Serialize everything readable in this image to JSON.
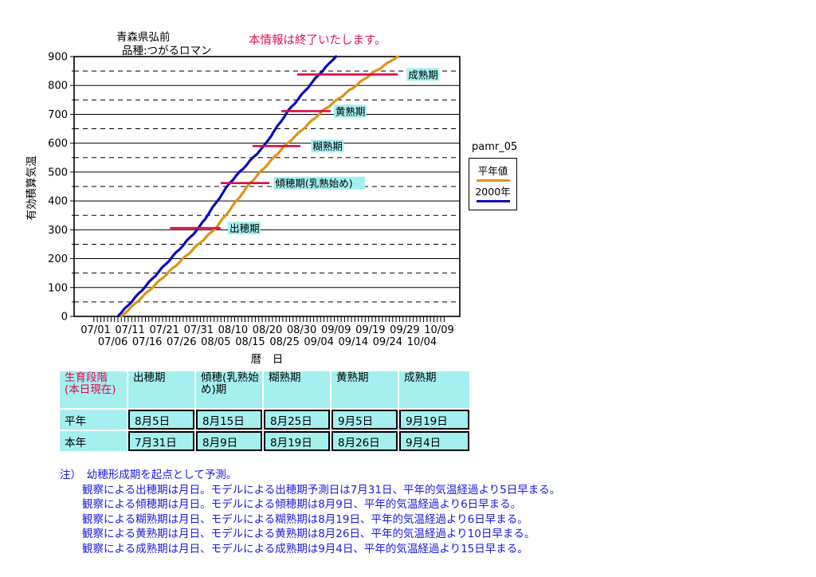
{
  "page": {
    "location": "青森県弘前",
    "variety": "品種:つがるロマン",
    "notice": "本情報は終了いたします。"
  },
  "legend": {
    "title": "pamr_05",
    "items": [
      {
        "label": "平年値"
      },
      {
        "label": "2000年"
      }
    ]
  },
  "chart_data": {
    "type": "line",
    "x_axis": {
      "title": "暦　日",
      "day_origin": "07/01",
      "tick_labels_row1": [
        "07/01",
        "07/11",
        "07/21",
        "07/31",
        "08/10",
        "08/20",
        "08/30",
        "09/09",
        "09/19",
        "09/29",
        "10/09"
      ],
      "tick_labels_row2": [
        "07/06",
        "07/16",
        "07/26",
        "08/05",
        "08/15",
        "08/25",
        "09/04",
        "09/14",
        "09/24",
        "10/04"
      ]
    },
    "y_axis": {
      "title": "有効積算気温",
      "min": 0,
      "max": 900,
      "major_step": 100,
      "minor_step": 50
    },
    "series": [
      {
        "name": "2000年",
        "color": "#0B0BB9",
        "points": [
          [
            6.5,
            0
          ],
          [
            30,
            306
          ],
          [
            39,
            462
          ],
          [
            49,
            590
          ],
          [
            56,
            711
          ],
          [
            65,
            838
          ],
          [
            70,
            900
          ]
        ]
      },
      {
        "name": "平年値",
        "color": "#DE9414",
        "points": [
          [
            7.5,
            0
          ],
          [
            35,
            306
          ],
          [
            45,
            462
          ],
          [
            55,
            590
          ],
          [
            66,
            711
          ],
          [
            80,
            838
          ],
          [
            88,
            900
          ]
        ]
      }
    ],
    "stage_lines": [
      {
        "label": "出穂期",
        "value": 306,
        "from_day": 21.6,
        "to_day": 36.4,
        "label_day": 39.0
      },
      {
        "label": "傾穂期(乳熟始め)",
        "value": 462,
        "from_day": 36.4,
        "to_day": 50.6,
        "label_day": 52.3
      },
      {
        "label": "糊熟期",
        "value": 590,
        "from_day": 45.7,
        "to_day": 59.6,
        "label_day": 63.2
      },
      {
        "label": "黄熟期",
        "value": 711,
        "from_day": 54.1,
        "to_day": 68.4,
        "label_day": 69.8
      },
      {
        "label": "成熟期",
        "value": 838,
        "from_day": 58.7,
        "to_day": 88.0,
        "label_day": 91.0
      }
    ]
  },
  "table": {
    "stage_col_title_line1": "生育段階",
    "stage_col_title_line2": "(本日現在)",
    "columns": [
      "出穂期",
      "傾穂(乳熟始め)期",
      "糊熟期",
      "黄熟期",
      "成熟期"
    ],
    "rows": [
      {
        "label": "平年",
        "values": [
          "8月5日",
          "8月15日",
          "8月25日",
          "9月5日",
          "9月19日"
        ]
      },
      {
        "label": "本年",
        "values": [
          "7月31日",
          "8月9日",
          "8月19日",
          "8月26日",
          "9月4日"
        ]
      }
    ]
  },
  "notes": {
    "heading": "注）　幼穂形成期を起点として予測。",
    "lines": [
      "観察による出穂期は月日。モデルによる出穂期予測日は7月31日、平年的気温経過より5日早まる。",
      "観察による傾穂期は月日。モデルによる傾穂期は8月9日、平年的気温経過より6日早まる。",
      "観察による糊熟期は月日、モデルによる糊熟期は8月19日、平年的気温経過より6日早まる。",
      "観察による黄熟期は月日、モデルによる黄熟期は8月26日、平年的気温経過より10日早まる。",
      "観察による成熟期は月日、モデルによる成熟期は9月4日、平年的気温経過より15日早まる。"
    ]
  },
  "colors": {
    "series_normal_year": "#DE9414",
    "series_2000": "#0B0BB9",
    "stage_line": "#DC0A46",
    "stage_label_bg": "#A5EFEF",
    "table_bg": "#A5EFEF",
    "table_header_red": "#DC0A46",
    "notice_text": "#E41050",
    "note_text": "#1A1ADF"
  }
}
